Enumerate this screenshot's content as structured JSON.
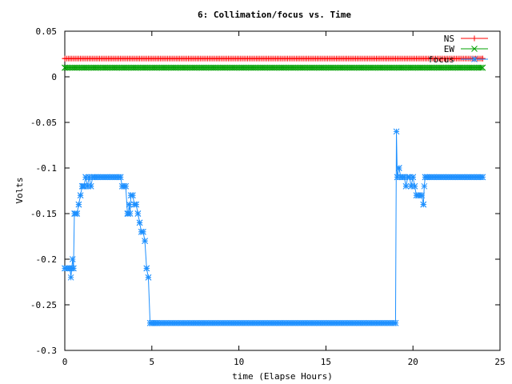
{
  "chart_data": {
    "type": "line",
    "title": "6: Collimation/focus vs. Time",
    "xlabel": "time (Elapse Hours)",
    "ylabel": "Volts",
    "xlim": [
      0,
      25
    ],
    "ylim": [
      -0.3,
      0.05
    ],
    "xticks": [
      0,
      5,
      10,
      15,
      20,
      25
    ],
    "yticks": [
      -0.3,
      -0.25,
      -0.2,
      -0.15,
      -0.1,
      -0.05,
      0,
      0.05
    ],
    "xtick_labels": [
      "0",
      "5",
      "10",
      "15",
      "20",
      "25"
    ],
    "ytick_labels": [
      "-0.3",
      "-0.25",
      "-0.2",
      "-0.15",
      "-0.1",
      "-0.05",
      "0",
      "0.05"
    ],
    "grid": false,
    "legend": "top-right",
    "series": [
      {
        "name": "NS",
        "color": "#ff0000",
        "marker": "plus",
        "x": [
          0,
          24
        ],
        "y": [
          0.02,
          0.02
        ],
        "dense_from": 0,
        "dense_to": 24,
        "dense_step": 0.1
      },
      {
        "name": "EW",
        "color": "#00a000",
        "marker": "cross",
        "x": [
          0,
          24
        ],
        "y": [
          0.01,
          0.01
        ],
        "dense_from": 0,
        "dense_to": 24,
        "dense_step": 0.1
      },
      {
        "name": "focus",
        "color": "#1e90ff",
        "marker": "star",
        "x": [
          0,
          0.3,
          0.35,
          0.4,
          0.45,
          0.5,
          0.55,
          0.6,
          0.7,
          0.8,
          0.9,
          1.0,
          1.05,
          1.1,
          1.2,
          1.3,
          1.4,
          1.5,
          1.6,
          1.7,
          3.2,
          3.3,
          3.4,
          3.5,
          3.6,
          3.65,
          3.7,
          3.75,
          3.8,
          3.9,
          4.0,
          4.1,
          4.2,
          4.3,
          4.4,
          4.5,
          4.6,
          4.7,
          4.8,
          4.9,
          5.0,
          5.1,
          5.2,
          5.3,
          19.0,
          19.05,
          19.1,
          19.2,
          19.3,
          19.4,
          19.5,
          19.6,
          19.7,
          19.8,
          19.9,
          20.0,
          20.1,
          20.2,
          20.3,
          20.5,
          20.6,
          20.65,
          20.7,
          20.8,
          24.0
        ],
        "y": [
          -0.21,
          -0.21,
          -0.22,
          -0.21,
          -0.2,
          -0.21,
          -0.15,
          -0.15,
          -0.15,
          -0.14,
          -0.13,
          -0.12,
          -0.12,
          -0.12,
          -0.11,
          -0.12,
          -0.11,
          -0.12,
          -0.11,
          -0.11,
          -0.11,
          -0.12,
          -0.12,
          -0.12,
          -0.15,
          -0.15,
          -0.14,
          -0.15,
          -0.13,
          -0.13,
          -0.14,
          -0.14,
          -0.15,
          -0.16,
          -0.17,
          -0.17,
          -0.18,
          -0.21,
          -0.22,
          -0.27,
          -0.27,
          -0.27,
          -0.27,
          -0.27,
          -0.27,
          -0.06,
          -0.11,
          -0.1,
          -0.11,
          -0.11,
          -0.11,
          -0.12,
          -0.11,
          -0.11,
          -0.12,
          -0.11,
          -0.12,
          -0.13,
          -0.13,
          -0.13,
          -0.14,
          -0.12,
          -0.11,
          -0.11,
          -0.11
        ],
        "dense_step": 0.1
      }
    ]
  }
}
